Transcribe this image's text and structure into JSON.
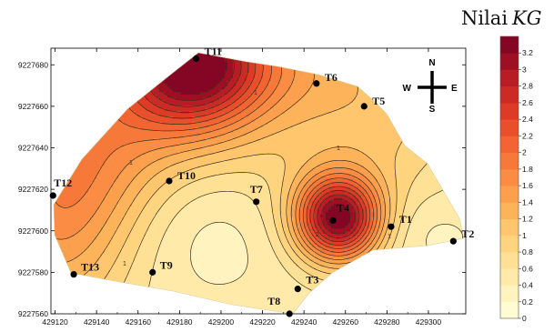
{
  "chart_data": {
    "type": "contour",
    "colorbar": {
      "title": "Nilai",
      "title_symbol": "KG",
      "levels": [
        0,
        0.2,
        0.4,
        0.6,
        0.8,
        1,
        1.2,
        1.4,
        1.6,
        1.8,
        2,
        2.2,
        2.4,
        2.6,
        2.8,
        3,
        3.2
      ],
      "level_labels": [
        "0",
        "0.2",
        "0.4",
        "0.6",
        "0.8",
        "1",
        "1.2",
        "1.4",
        "1.6",
        "1.8",
        "2",
        "2.2",
        "2.4",
        "2.6",
        "2.8",
        "3",
        "3.2"
      ],
      "colors": [
        "#fffbd2",
        "#fff3c0",
        "#ffeaaa",
        "#ffe196",
        "#ffd47e",
        "#ffc66e",
        "#fdb35a",
        "#fca04e",
        "#fb8c43",
        "#f7793a",
        "#f26432",
        "#ea4f2c",
        "#dd3b26",
        "#cc2a24",
        "#b81c24",
        "#9f0f24",
        "#850624"
      ]
    },
    "x_ticks": [
      429120,
      429140,
      429160,
      429180,
      429200,
      429220,
      429240,
      429260,
      429280,
      429300
    ],
    "x_tick_labels": [
      "429120",
      "429140",
      "429160",
      "429180",
      "429200",
      "429220",
      "429240",
      "429260",
      "429280",
      "429300"
    ],
    "y_ticks": [
      9227560,
      9227580,
      9227600,
      9227620,
      9227640,
      9227660,
      9227680
    ],
    "y_tick_labels": [
      "9227560",
      "9227580",
      "9227600",
      "9227620",
      "9227640",
      "9227660",
      "9227680"
    ],
    "contour_labels": [
      "1",
      "1",
      "1",
      "1",
      "2",
      "1"
    ],
    "points": [
      {
        "label": "T1",
        "x": 429282,
        "y": 9227602
      },
      {
        "label": "T2",
        "x": 429312,
        "y": 9227595
      },
      {
        "label": "T3",
        "x": 429237,
        "y": 9227572
      },
      {
        "label": "T4",
        "x": 429254,
        "y": 9227605
      },
      {
        "label": "T5",
        "x": 429269,
        "y": 9227660
      },
      {
        "label": "T6",
        "x": 429246,
        "y": 9227671
      },
      {
        "label": "T7",
        "x": 429217,
        "y": 9227614
      },
      {
        "label": "T8",
        "x": 429233,
        "y": 9227560
      },
      {
        "label": "T9",
        "x": 429167,
        "y": 9227580
      },
      {
        "label": "T10",
        "x": 429175,
        "y": 9227624
      },
      {
        "label": "T11",
        "x": 429188,
        "y": 9227683
      },
      {
        "label": "T12",
        "x": 429119,
        "y": 9227617
      },
      {
        "label": "T13",
        "x": 429129,
        "y": 9227579
      }
    ]
  },
  "compass": {
    "n": "N",
    "s": "S",
    "e": "E",
    "w": "W"
  }
}
